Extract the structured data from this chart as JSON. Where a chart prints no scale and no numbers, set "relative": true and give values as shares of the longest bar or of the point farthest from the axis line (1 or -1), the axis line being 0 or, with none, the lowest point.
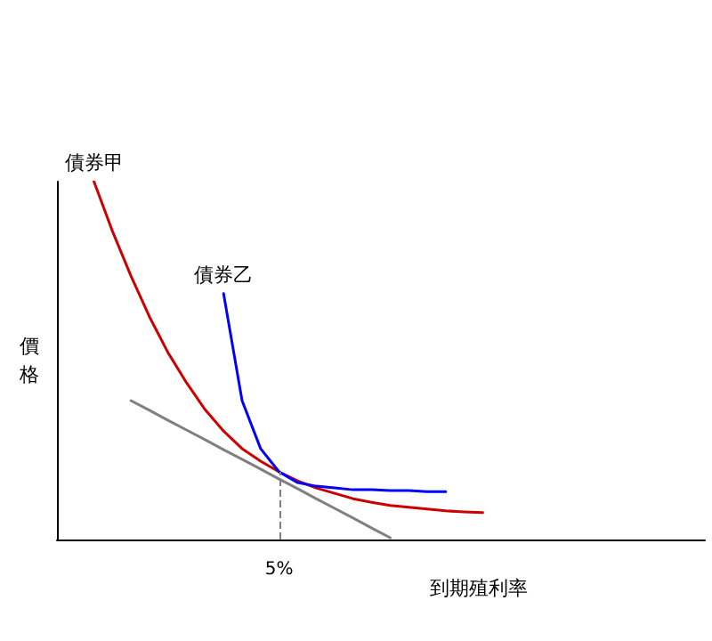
{
  "chart_data": {
    "type": "line",
    "relative": true,
    "xlabel": "到期殖利率",
    "ylabel": "價格",
    "categories": [
      null,
      null,
      null,
      null,
      null,
      null,
      null,
      null,
      null,
      null,
      null,
      null,
      null,
      null,
      null,
      null,
      null,
      null,
      null,
      null,
      null,
      null,
      null,
      null,
      null,
      null,
      null,
      null,
      null,
      null,
      null,
      null,
      null,
      null,
      null,
      null
    ],
    "series": [
      {
        "name": "債券甲",
        "color": "#cc0000",
        "values": [
          null,
          null,
          1.0,
          0.861,
          0.736,
          0.622,
          0.522,
          0.438,
          0.363,
          0.303,
          0.254,
          0.219,
          0.189,
          0.164,
          0.144,
          0.129,
          0.114,
          0.104,
          0.095,
          0.09,
          0.085,
          0.08,
          0.077,
          0.075,
          null,
          null,
          null,
          null,
          null,
          null,
          null,
          null,
          null,
          null,
          null,
          null
        ]
      },
      {
        "name": "債券乙",
        "color": "#0000ff",
        "values": [
          null,
          null,
          null,
          null,
          null,
          null,
          null,
          null,
          null,
          0.687,
          0.388,
          0.254,
          0.189,
          0.159,
          0.149,
          0.144,
          0.139,
          0.139,
          0.137,
          0.137,
          0.134,
          0.134,
          null,
          null,
          null,
          null,
          null,
          null,
          null,
          null,
          null,
          null,
          null,
          null,
          null,
          null
        ]
      },
      {
        "color": "#808080",
        "values": [
          null,
          null,
          null,
          null,
          0.388,
          0.361,
          0.333,
          0.306,
          0.279,
          0.251,
          0.224,
          0.197,
          0.169,
          0.142,
          0.114,
          0.087,
          0.06,
          0.032,
          0.005,
          null,
          null,
          null,
          null,
          null,
          null,
          null,
          null,
          null,
          null,
          null,
          null,
          null,
          null,
          null,
          null,
          null
        ]
      }
    ],
    "annotations": [
      "5%"
    ],
    "legend": false,
    "grid": false,
    "marker": "none",
    "line_style": "solid"
  }
}
